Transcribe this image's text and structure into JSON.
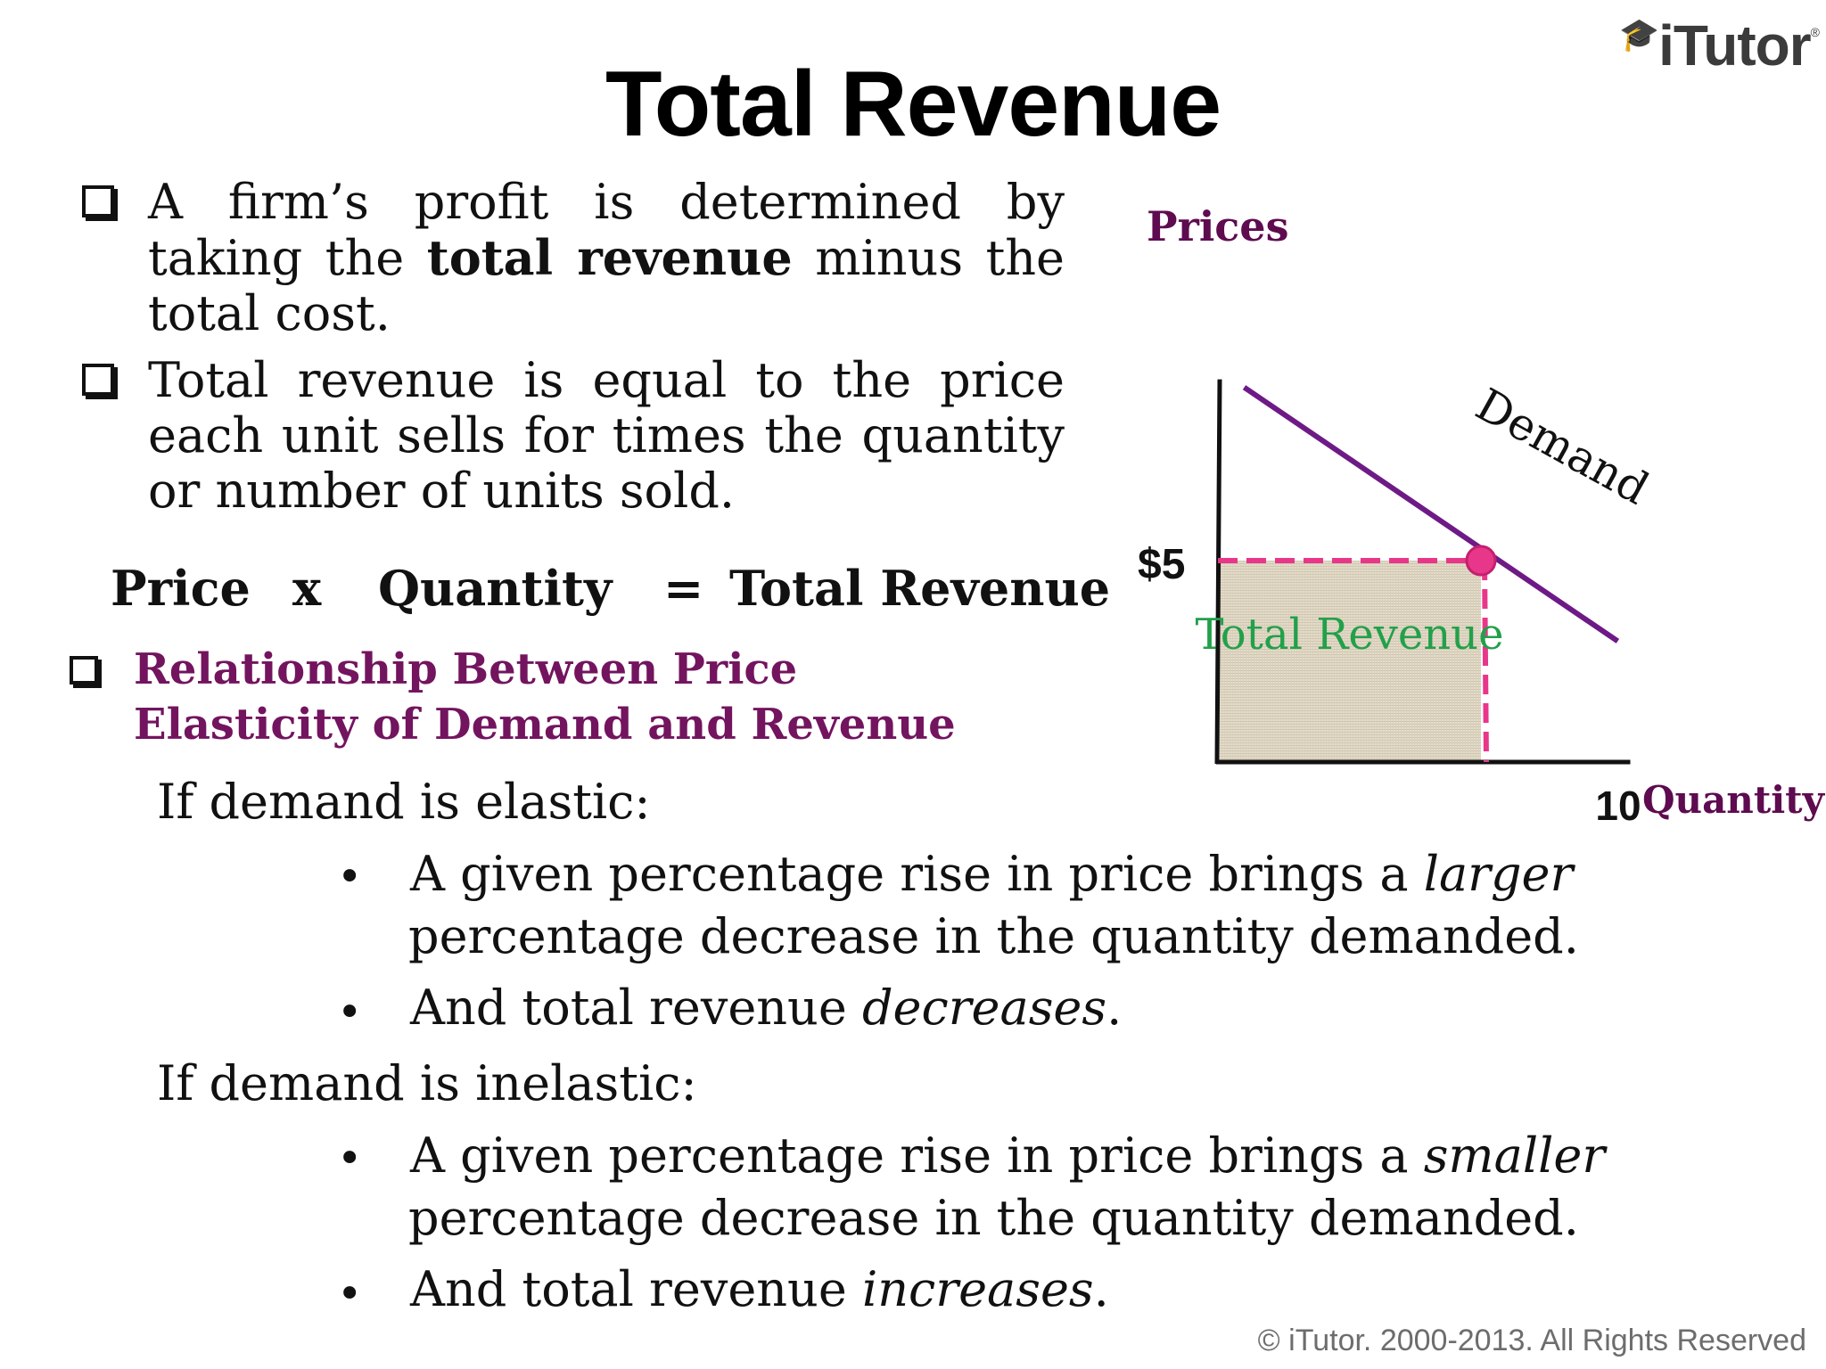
{
  "slide": {
    "title": "Total Revenue",
    "logo": "iTutor",
    "copyright": "© iTutor. 2000-2013. All Rights Reserved"
  },
  "intro": {
    "p1_before": "A firm’s profit is determined by taking the ",
    "p1_bold": "total revenue",
    "p1_after": " minus the total cost.",
    "p2": "Total revenue is equal to the price each unit sells for times the quantity or number of units sold."
  },
  "formula": {
    "price": "Price",
    "times": "x",
    "quantity": "Quantity",
    "equals": "=",
    "result": "Total Revenue"
  },
  "relationship": {
    "heading_line1": "Relationship Between Price",
    "heading_line2": "Elasticity of Demand and Revenue"
  },
  "elastic": {
    "label": "If demand is elastic:",
    "b1_before": "A given percentage rise in price brings a ",
    "b1_em": "larger",
    "b1_line2": "percentage decrease in the quantity demanded.",
    "b2_before": "And total revenue ",
    "b2_em": "decreases",
    "b2_after": "."
  },
  "inelastic": {
    "label": "If demand is inelastic:",
    "b1_before": "A given percentage rise in price brings a ",
    "b1_em": "smaller",
    "b1_line2": "percentage decrease in the quantity demanded.",
    "b2_before": "And total revenue ",
    "b2_em": "increases",
    "b2_after": "."
  },
  "bullet_char": "•",
  "chart_data": {
    "type": "line",
    "ylabel": "Prices",
    "xlabel": "Quantity",
    "series": [
      {
        "name": "Demand",
        "x": [
          1,
          15.2
        ],
        "y": [
          9.3,
          3.0
        ]
      }
    ],
    "marked_point": {
      "x": 10,
      "y": 5,
      "x_label": "10",
      "y_label": "$5"
    },
    "shaded_area": {
      "label": "Total Revenue",
      "x": [
        0,
        10
      ],
      "y": [
        0,
        5
      ]
    },
    "xlim": [
      0,
      15
    ],
    "ylim": [
      0,
      9.5
    ],
    "colors": {
      "demand": "#6e1a86",
      "guides": "#e8378a",
      "area_label": "#22a04a",
      "axis_titles": "#5e0b50",
      "area_fill": "#e2d9c6"
    }
  }
}
